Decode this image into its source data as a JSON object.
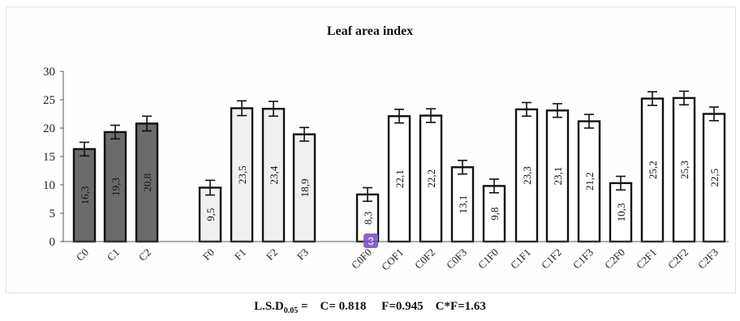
{
  "chart_data": {
    "type": "bar",
    "title": "Leaf area index",
    "xlabel": "",
    "ylabel": "",
    "ylim": [
      0,
      30
    ],
    "yticks": [
      0,
      5,
      10,
      15,
      20,
      25,
      30
    ],
    "grid": false,
    "error_bars": true,
    "groups": [
      {
        "categories": [
          "C0",
          "C1",
          "C2"
        ],
        "values": [
          16.3,
          19.3,
          20.8
        ],
        "labels": [
          "16,3",
          "19,3",
          "20,8"
        ],
        "error": [
          1.2,
          1.2,
          1.3
        ],
        "color": "#6b6b6b"
      },
      {
        "categories": [
          "F0",
          "F1",
          "F2",
          "F3"
        ],
        "values": [
          9.5,
          23.5,
          23.4,
          18.9
        ],
        "labels": [
          "9,5",
          "23,5",
          "23,4",
          "18,9"
        ],
        "error": [
          1.3,
          1.3,
          1.3,
          1.2
        ],
        "color": "#f0f0f0"
      },
      {
        "categories": [
          "C0F0",
          "COF1",
          "C0F2",
          "C0F3",
          "C1F0",
          "C1F1",
          "C1F2",
          "C1F3",
          "C2F0",
          "C2F1",
          "C2F2",
          "C2F3"
        ],
        "values": [
          8.3,
          22.1,
          22.2,
          13.1,
          9.8,
          23.3,
          23.1,
          21.2,
          10.3,
          25.2,
          25.3,
          22.5
        ],
        "labels": [
          "8,3",
          "22,1",
          "22,2",
          "13,1",
          "9,8",
          "23,3",
          "23,1",
          "21,2",
          "10,3",
          "25,2",
          "25,3",
          "22,5"
        ],
        "error": [
          1.2,
          1.2,
          1.2,
          1.2,
          1.2,
          1.2,
          1.2,
          1.2,
          1.2,
          1.2,
          1.2,
          1.2
        ],
        "color": "#ffffff"
      }
    ],
    "annotations": [
      "3"
    ]
  },
  "footer": {
    "lsd_prefix": "L.S.D",
    "lsd_subscript": "0.05",
    "lsd_rest": " =    C= 0.818     F=0.945    C*F=1.63"
  },
  "colors": {
    "bar_outline": "#111111",
    "badge": "#8a63d2"
  }
}
